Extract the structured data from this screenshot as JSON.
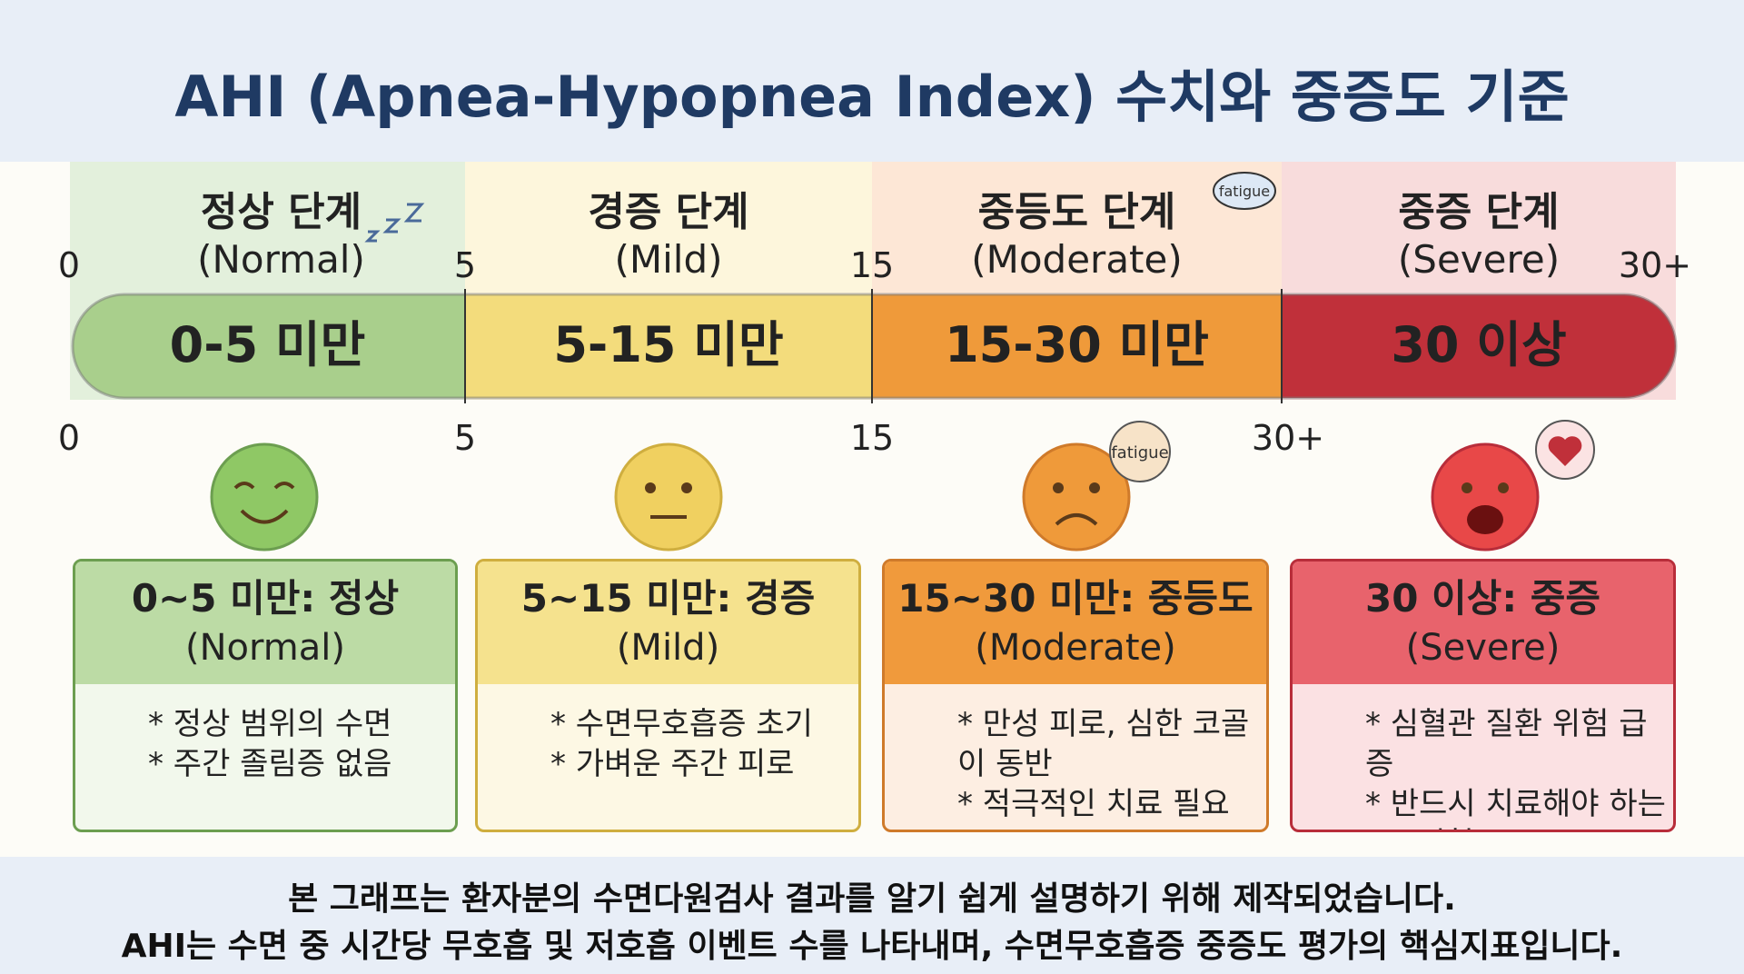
{
  "header": {
    "title": "AHI (Apnea-Hypopnea Index) 수치와 중증도 기준"
  },
  "scale": {
    "top_ticks": [
      "0",
      "5",
      "15",
      "30+"
    ],
    "bottom_ticks": [
      "0",
      "5",
      "15",
      "30+"
    ]
  },
  "stages": [
    {
      "name": "정상 단계",
      "name_en": "(Normal)",
      "range": "0-5 미만",
      "card_title": "0~5 미만: 정상",
      "card_en": "(Normal)",
      "bullets": [
        "* 정상 범위의 수면",
        "* 주간 졸림증 없음"
      ]
    },
    {
      "name": "경증 단계",
      "name_en": "(Mild)",
      "range": "5-15 미만",
      "card_title": "5~15 미만: 경증",
      "card_en": "(Mild)",
      "bullets": [
        "* 수면무호흡증 초기",
        "* 가벼운 주간 피로"
      ]
    },
    {
      "name": "중등도 단계",
      "name_en": "(Moderate)",
      "range": "15-30 미만",
      "card_title": "15~30 미만: 중등도",
      "card_en": "(Moderate)",
      "bullets": [
        "* 만성 피로, 심한 코골이 동반",
        "* 적극적인 치료 필요"
      ],
      "bubble": "fatigue",
      "face_bubble": "fatigue"
    },
    {
      "name": "중증 단계",
      "name_en": "(Severe)",
      "range": "30 이상",
      "card_title": "30 이상: 중증",
      "card_en": "(Severe)",
      "bullets": [
        "* 심혈관 질환 위험 급증",
        "* 반드시 치료해야 하는",
        "고위험군"
      ]
    }
  ],
  "footer": {
    "lines": [
      "본 그래프는 환자분의 수면다원검사 결과를 알기 쉽게 설명하기 위해 제작되었습니다.",
      "AHI는 수면 중 시간당 무호흡 및 저호흡 이벤트 수를 나타내며, 수면무호흡증 중증도 평가의 핵심지표입니다."
    ]
  }
}
